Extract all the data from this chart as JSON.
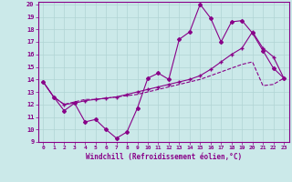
{
  "background_color": "#cbe9e9",
  "grid_color": "#b0d4d4",
  "line_color": "#880088",
  "xlabel": "Windchill (Refroidissement éolien,°C)",
  "xlim": [
    -0.5,
    23.5
  ],
  "ylim": [
    9,
    20.2
  ],
  "xticks": [
    0,
    1,
    2,
    3,
    4,
    5,
    6,
    7,
    8,
    9,
    10,
    11,
    12,
    13,
    14,
    15,
    16,
    17,
    18,
    19,
    20,
    21,
    22,
    23
  ],
  "yticks": [
    9,
    10,
    11,
    12,
    13,
    14,
    15,
    16,
    17,
    18,
    19,
    20
  ],
  "line1_x": [
    0,
    1,
    2,
    3,
    4,
    5,
    6,
    7,
    8,
    9,
    10,
    11,
    12,
    13,
    14,
    15,
    16,
    17,
    18,
    19,
    20,
    21,
    22,
    23
  ],
  "line1_y": [
    13.8,
    12.6,
    11.5,
    12.1,
    10.6,
    10.8,
    10.0,
    9.3,
    9.8,
    11.7,
    14.1,
    14.5,
    14.0,
    17.2,
    17.8,
    20.0,
    18.9,
    17.0,
    18.6,
    18.7,
    17.7,
    16.3,
    14.9,
    14.1
  ],
  "line2_x": [
    0,
    1,
    2,
    3,
    4,
    5,
    6,
    7,
    8,
    9,
    10,
    11,
    12,
    13,
    14,
    15,
    16,
    17,
    18,
    19,
    20,
    21,
    22,
    23
  ],
  "line2_y": [
    13.8,
    12.6,
    12.0,
    12.1,
    12.3,
    12.4,
    12.5,
    12.6,
    12.8,
    13.0,
    13.2,
    13.4,
    13.6,
    13.8,
    14.0,
    14.3,
    14.8,
    15.4,
    16.0,
    16.5,
    17.8,
    16.5,
    15.8,
    14.1
  ],
  "line3_x": [
    0,
    1,
    2,
    3,
    4,
    5,
    6,
    7,
    8,
    9,
    10,
    11,
    12,
    13,
    14,
    15,
    16,
    17,
    18,
    19,
    20,
    21,
    22,
    23
  ],
  "line3_y": [
    13.8,
    12.6,
    12.0,
    12.2,
    12.4,
    12.4,
    12.5,
    12.6,
    12.7,
    12.8,
    13.0,
    13.2,
    13.4,
    13.6,
    13.8,
    14.0,
    14.3,
    14.6,
    14.9,
    15.2,
    15.4,
    13.5,
    13.6,
    14.1
  ]
}
